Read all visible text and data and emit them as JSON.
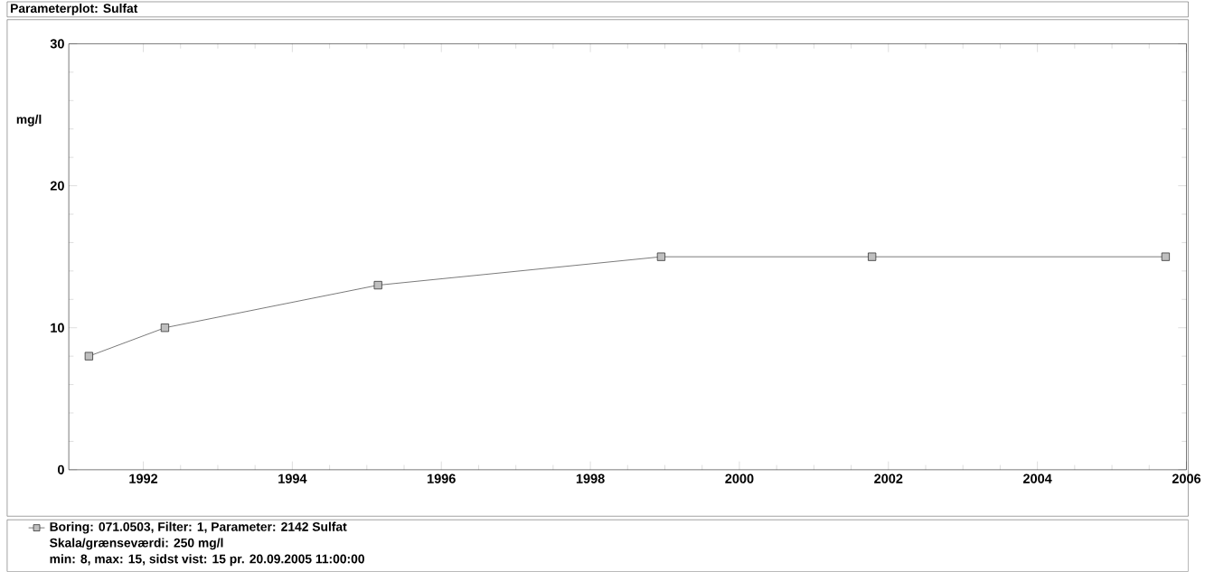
{
  "chart_data": {
    "type": "line",
    "title": "Parameterplot: Sulfat",
    "ylabel": "mg/l",
    "x": [
      1991.27,
      1992.29,
      1995.15,
      1998.95,
      2001.78,
      2005.72
    ],
    "series": [
      {
        "name": "Boring: 071.0503, Filter: 1, Parameter: 2142 Sulfat",
        "color": "#000000",
        "values": [
          8,
          10,
          13,
          15,
          15,
          15
        ]
      }
    ],
    "xlim": [
      1991,
      2006
    ],
    "xticks": [
      1992,
      1994,
      1996,
      1998,
      2000,
      2002,
      2004,
      2006
    ],
    "ylim": [
      0,
      30
    ],
    "yticks": [
      0,
      10,
      20,
      30
    ],
    "marker": "square",
    "line_style": "solid",
    "grid": false,
    "legend": "bottom",
    "annotations": [
      "Skala/grænseværdi:  250 mg/l",
      "min: 8,  max: 15,  sidst vist: 15  pr. 20.09.2005 11:00:00"
    ]
  }
}
